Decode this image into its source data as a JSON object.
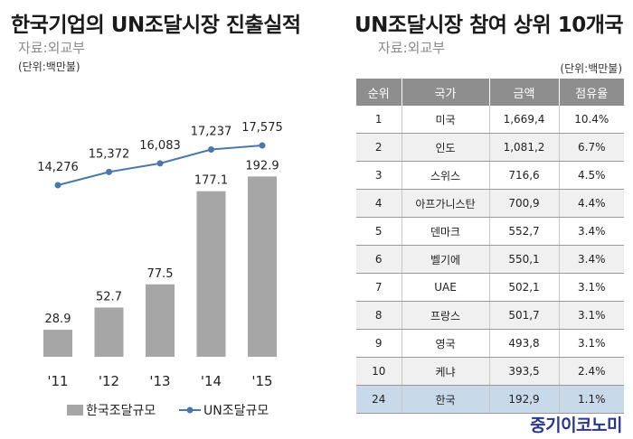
{
  "left": {
    "title": "한국기업의 UN조달시장 진출실적",
    "source": "자료:외교부",
    "unit": "(단위:백만불)"
  },
  "right": {
    "title": "UN조달시장 참여 상위 10개국",
    "source": "자료:외교부",
    "unit": "(단위:백만불)",
    "columns": [
      "순위",
      "국가",
      "금액",
      "점유율"
    ],
    "rows": [
      {
        "rank": "1",
        "country": "미국",
        "amount": "1,669,4",
        "share": "10.4%"
      },
      {
        "rank": "2",
        "country": "인도",
        "amount": "1,081,2",
        "share": "6.7%"
      },
      {
        "rank": "3",
        "country": "스위스",
        "amount": "716,6",
        "share": "4.5%"
      },
      {
        "rank": "4",
        "country": "아프가니스탄",
        "amount": "700,9",
        "share": "4.4%"
      },
      {
        "rank": "5",
        "country": "덴마크",
        "amount": "552,7",
        "share": "3.4%"
      },
      {
        "rank": "6",
        "country": "벨기에",
        "amount": "550,1",
        "share": "3.4%"
      },
      {
        "rank": "7",
        "country": "UAE",
        "amount": "502,1",
        "share": "3.1%"
      },
      {
        "rank": "8",
        "country": "프랑스",
        "amount": "501,7",
        "share": "3.1%"
      },
      {
        "rank": "9",
        "country": "영국",
        "amount": "493,8",
        "share": "3.1%"
      },
      {
        "rank": "10",
        "country": "케냐",
        "amount": "393,5",
        "share": "2.4%"
      },
      {
        "rank": "24",
        "country": "한국",
        "amount": "192,9",
        "share": "1.1%"
      }
    ]
  },
  "brand": "중기이코노미",
  "chart_data": {
    "type": "bar",
    "categories": [
      "'11",
      "'12",
      "'13",
      "'14",
      "'15"
    ],
    "series": [
      {
        "name": "한국조달규모",
        "type": "bar",
        "values": [
          28.9,
          52.7,
          77.5,
          177.1,
          192.9
        ],
        "labels": [
          "28.9",
          "52.7",
          "77.5",
          "177.1",
          "192.9"
        ],
        "color": "#a6a6a6"
      },
      {
        "name": "UN조달규모",
        "type": "line",
        "values": [
          14276,
          15372,
          16083,
          17237,
          17575
        ],
        "labels": [
          "14,276",
          "15,372",
          "16,083",
          "17,237",
          "17,575"
        ],
        "color": "#4a78aa"
      }
    ],
    "bar_ylim": [
      0,
      200
    ],
    "line_ylim": [
      14276,
      17575
    ],
    "legend": "bottom",
    "grid": false
  }
}
